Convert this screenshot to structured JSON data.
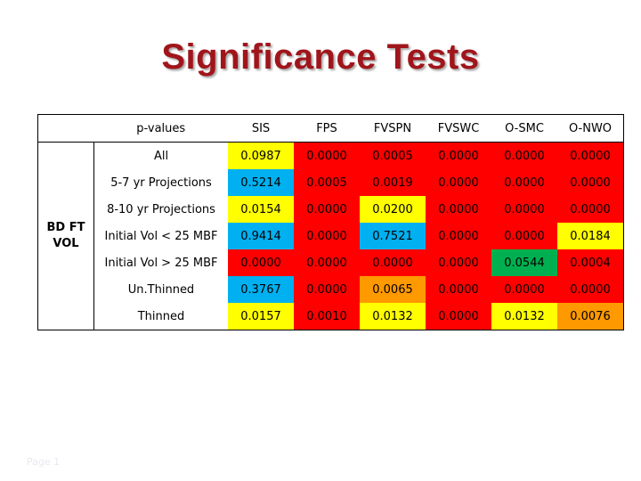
{
  "slide": {
    "title": "Significance Tests",
    "footer": "Page 1"
  },
  "table": {
    "corner_label": "p-values",
    "group_label": "BD FT VOL",
    "columns": [
      "SIS",
      "FPS",
      "FVSPN",
      "FVSWC",
      "O-SMC",
      "O-NWO"
    ],
    "rows": [
      {
        "label": "All",
        "values": [
          "0.0987",
          "0.0000",
          "0.0005",
          "0.0000",
          "0.0000",
          "0.0000"
        ],
        "colors": [
          "#ffff00",
          "#ff0000",
          "#ff0000",
          "#ff0000",
          "#ff0000",
          "#ff0000"
        ]
      },
      {
        "label": "5-7 yr Projections",
        "values": [
          "0.5214",
          "0.0005",
          "0.0019",
          "0.0000",
          "0.0000",
          "0.0000"
        ],
        "colors": [
          "#00b0f0",
          "#ff0000",
          "#ff0000",
          "#ff0000",
          "#ff0000",
          "#ff0000"
        ]
      },
      {
        "label": "8-10 yr Projections",
        "values": [
          "0.0154",
          "0.0000",
          "0.0200",
          "0.0000",
          "0.0000",
          "0.0000"
        ],
        "colors": [
          "#ffff00",
          "#ff0000",
          "#ffff00",
          "#ff0000",
          "#ff0000",
          "#ff0000"
        ]
      },
      {
        "label": "Initial Vol < 25 MBF",
        "values": [
          "0.9414",
          "0.0000",
          "0.7521",
          "0.0000",
          "0.0000",
          "0.0184"
        ],
        "colors": [
          "#00b0f0",
          "#ff0000",
          "#00b0f0",
          "#ff0000",
          "#ff0000",
          "#ffff00"
        ]
      },
      {
        "label": "Initial Vol > 25 MBF",
        "values": [
          "0.0000",
          "0.0000",
          "0.0000",
          "0.0000",
          "0.0544",
          "0.0004"
        ],
        "colors": [
          "#ff0000",
          "#ff0000",
          "#ff0000",
          "#ff0000",
          "#00b050",
          "#ff0000"
        ]
      },
      {
        "label": "Un.Thinned",
        "values": [
          "0.3767",
          "0.0000",
          "0.0065",
          "0.0000",
          "0.0000",
          "0.0000"
        ],
        "colors": [
          "#00b0f0",
          "#ff0000",
          "#ff9900",
          "#ff0000",
          "#ff0000",
          "#ff0000"
        ]
      },
      {
        "label": "Thinned",
        "values": [
          "0.0157",
          "0.0010",
          "0.0132",
          "0.0000",
          "0.0132",
          "0.0076"
        ],
        "colors": [
          "#ffff00",
          "#ff0000",
          "#ffff00",
          "#ff0000",
          "#ffff00",
          "#ff9900"
        ]
      }
    ]
  }
}
